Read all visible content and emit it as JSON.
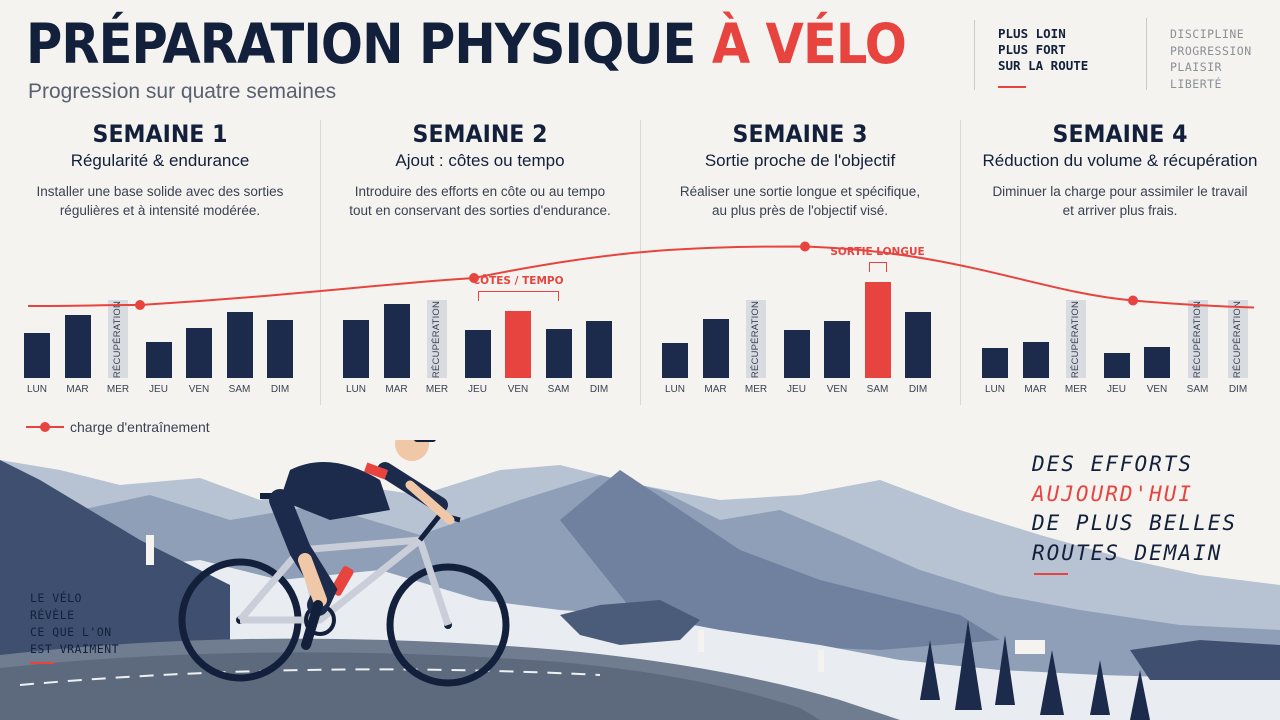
{
  "title": {
    "main": "PRÉPARATION PHYSIQUE",
    "accent": "À VÉLO"
  },
  "subtitle": "Progression sur quatre semaines",
  "slogan_primary": [
    "PLUS LOIN",
    "PLUS FORT",
    "SUR LA ROUTE"
  ],
  "slogan_secondary": [
    "DISCIPLINE",
    "PROGRESSION",
    "PLAISIR",
    "LIBERTÉ"
  ],
  "weeks": [
    {
      "title": "SEMAINE 1",
      "subtitle": "Régularité & endurance",
      "description": [
        "Installer une base solide avec des sorties",
        "régulières et à intensité modérée."
      ]
    },
    {
      "title": "SEMAINE 2",
      "subtitle": "Ajout : côtes ou tempo",
      "description": [
        "Introduire des efforts en côte ou au tempo",
        "tout en conservant des sorties d'endurance."
      ]
    },
    {
      "title": "SEMAINE 3",
      "subtitle": "Sortie proche de l'objectif",
      "description": [
        "Réaliser une sortie longue et spécifique,",
        "au plus près de l'objectif visé."
      ]
    },
    {
      "title": "SEMAINE 4",
      "subtitle": "Réduction du volume & récupération",
      "description": [
        "Diminuer la charge pour assimiler le travail",
        "et arriver plus frais."
      ]
    }
  ],
  "rest_label": "RÉCUPÉRATION",
  "days": [
    "LUN",
    "MAR",
    "MER",
    "JEU",
    "VEN",
    "SAM",
    "DIM"
  ],
  "chart_data": {
    "type": "bar",
    "categories": [
      "LUN",
      "MAR",
      "MER",
      "JEU",
      "VEN",
      "SAM",
      "DIM"
    ],
    "series": [
      {
        "name": "SEMAINE 1",
        "values": [
          45,
          63,
          null,
          36,
          50,
          66,
          58
        ],
        "rest": [
          2
        ],
        "highlight": []
      },
      {
        "name": "SEMAINE 2",
        "values": [
          58,
          74,
          null,
          48,
          67,
          49,
          57
        ],
        "rest": [
          2
        ],
        "highlight": [
          4
        ]
      },
      {
        "name": "SEMAINE 3",
        "values": [
          35,
          59,
          null,
          48,
          57,
          96,
          66
        ],
        "rest": [
          2
        ],
        "highlight": [
          5
        ]
      },
      {
        "name": "SEMAINE 4",
        "values": [
          30,
          36,
          null,
          25,
          31,
          null,
          null
        ],
        "rest": [
          2,
          5,
          6
        ],
        "highlight": []
      }
    ],
    "ylim": [
      0,
      100
    ],
    "callouts": [
      {
        "week": 2,
        "days": [
          3,
          5
        ],
        "label": "CÔTES / TEMPO"
      },
      {
        "week": 3,
        "days": [
          5,
          5
        ],
        "label": "SORTIE LONGUE"
      }
    ],
    "load_curve": {
      "name": "charge d'entraînement",
      "points": [
        40,
        58,
        79,
        43
      ]
    }
  },
  "legend_label": "charge d'entraînement",
  "quote": {
    "line1": "DES EFFORTS",
    "line2": "AUJOURD'HUI",
    "line3": "DE PLUS BELLES",
    "line4": "ROUTES DEMAIN"
  },
  "tagline": [
    "LE VÉLO",
    "RÉVÈLE",
    "CE QUE L'ON",
    "EST VRAIMENT"
  ],
  "colors": {
    "navy": "#1c2b4b",
    "accent": "#e8443f",
    "rest": "#d8dbe0",
    "background": "#f4f3ef"
  }
}
